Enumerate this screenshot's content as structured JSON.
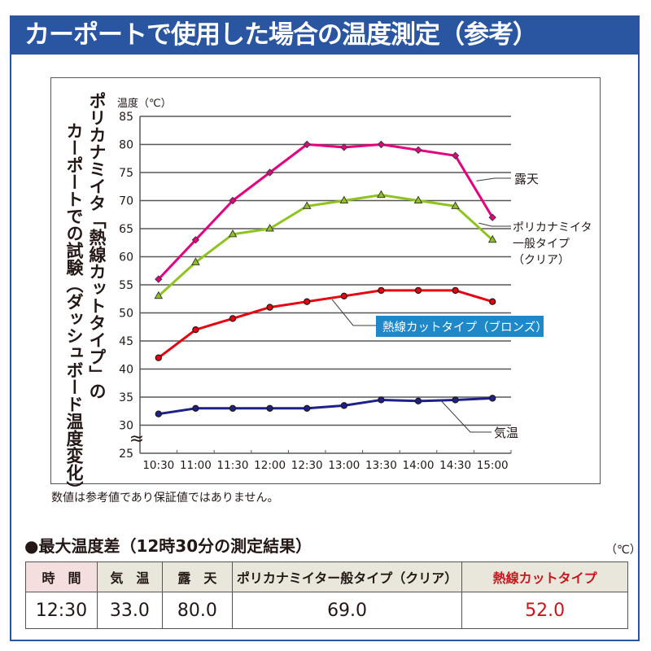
{
  "title": "カーポートで使用した場合の温度測定（参考）",
  "chart_title_lines": [
    "ポリカナミイタ「熱線カットタイプ」の",
    "カーポートでの試験（ダッシュボード温度変化）"
  ],
  "footnote": "数値は参考値であり保証値ではありません。",
  "chart_data": {
    "type": "line",
    "ylabel": "温度（℃）",
    "ylim": [
      25,
      85
    ],
    "yticks": [
      85,
      80,
      75,
      70,
      65,
      60,
      55,
      50,
      45,
      40,
      35,
      30,
      25
    ],
    "axis_break_symbol": "≈",
    "categories": [
      "10:30",
      "11:00",
      "11:30",
      "12:00",
      "12:30",
      "13:00",
      "13:30",
      "14:00",
      "14:30",
      "15:00"
    ],
    "grid": true,
    "series": [
      {
        "name": "露天",
        "label_lines": [
          "露天"
        ],
        "color": "#e4007f",
        "marker": "diamond",
        "values": [
          56,
          63,
          70,
          75,
          80,
          79.5,
          80,
          79,
          78,
          67
        ]
      },
      {
        "name": "ポリカナミイタ一般タイプ（クリア）",
        "label_lines": [
          "ポリカナミイタ",
          "一般タイプ",
          "（クリア）"
        ],
        "color": "#8fc31f",
        "marker": "triangle",
        "values": [
          53,
          59,
          64,
          65,
          69,
          70,
          71,
          70,
          69,
          63
        ]
      },
      {
        "name": "熱線カットタイプ（ブロンズ）",
        "label_lines": [
          "熱線カットタイプ（ブロンズ）"
        ],
        "color": "#e60012",
        "marker": "circle",
        "values": [
          42,
          47,
          49,
          51,
          52,
          53,
          54,
          54,
          54,
          52
        ]
      },
      {
        "name": "気温",
        "label_lines": [
          "気温"
        ],
        "color": "#1d2088",
        "marker": "circle",
        "values": [
          32,
          33,
          33,
          33,
          33,
          33.5,
          34.5,
          34.3,
          34.5,
          34.8
        ]
      }
    ],
    "legend_highlight_color": "#1e88c8"
  },
  "table": {
    "section_title": "●最大温度差（12時30分の測定結果）",
    "unit": "（℃）",
    "headers": [
      "時　間",
      "気　温",
      "露　天",
      "ポリカナミイター般タイプ（クリア）",
      "熱線カットタイプ"
    ],
    "row": [
      "12:30",
      "33.0",
      "80.0",
      "69.0",
      "52.0"
    ]
  }
}
